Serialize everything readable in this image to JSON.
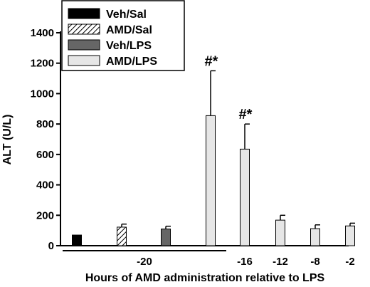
{
  "chart_data": {
    "type": "bar",
    "title": "",
    "ylabel": "ALT (U/L)",
    "xlabel": "Hours of AMD administration relative to LPS",
    "ylim": [
      0,
      1400
    ],
    "yticks": [
      0,
      200,
      400,
      600,
      800,
      1000,
      1200,
      1400
    ],
    "grid": false,
    "legend_position": "top-left",
    "legend": [
      {
        "name": "Veh/Sal",
        "fill": "#000000",
        "pattern": "solid"
      },
      {
        "name": "AMD/Sal",
        "fill": "#ffffff",
        "pattern": "hatch"
      },
      {
        "name": "Veh/LPS",
        "fill": "#666666",
        "pattern": "solid"
      },
      {
        "name": "AMD/LPS",
        "fill": "#e6e6e6",
        "pattern": "solid"
      }
    ],
    "groups": [
      {
        "label": "-20",
        "bars": [
          0,
          1,
          2,
          3
        ]
      },
      {
        "label": "-16",
        "bars": [
          4
        ]
      },
      {
        "label": "-12",
        "bars": [
          5
        ]
      },
      {
        "label": "-8",
        "bars": [
          6
        ]
      },
      {
        "label": "-2",
        "bars": [
          7
        ]
      }
    ],
    "bars": [
      {
        "series": "Veh/Sal",
        "value": 70,
        "error": 0,
        "annotation": ""
      },
      {
        "series": "AMD/Sal",
        "value": 122,
        "error": 20,
        "annotation": ""
      },
      {
        "series": "Veh/LPS",
        "value": 110,
        "error": 18,
        "annotation": ""
      },
      {
        "series": "AMD/LPS",
        "value": 855,
        "error": 295,
        "annotation": "#*"
      },
      {
        "series": "AMD/LPS",
        "value": 635,
        "error": 165,
        "annotation": "#*"
      },
      {
        "series": "AMD/LPS",
        "value": 168,
        "error": 32,
        "annotation": ""
      },
      {
        "series": "AMD/LPS",
        "value": 112,
        "error": 25,
        "annotation": ""
      },
      {
        "series": "AMD/LPS",
        "value": 130,
        "error": 18,
        "annotation": ""
      }
    ]
  }
}
